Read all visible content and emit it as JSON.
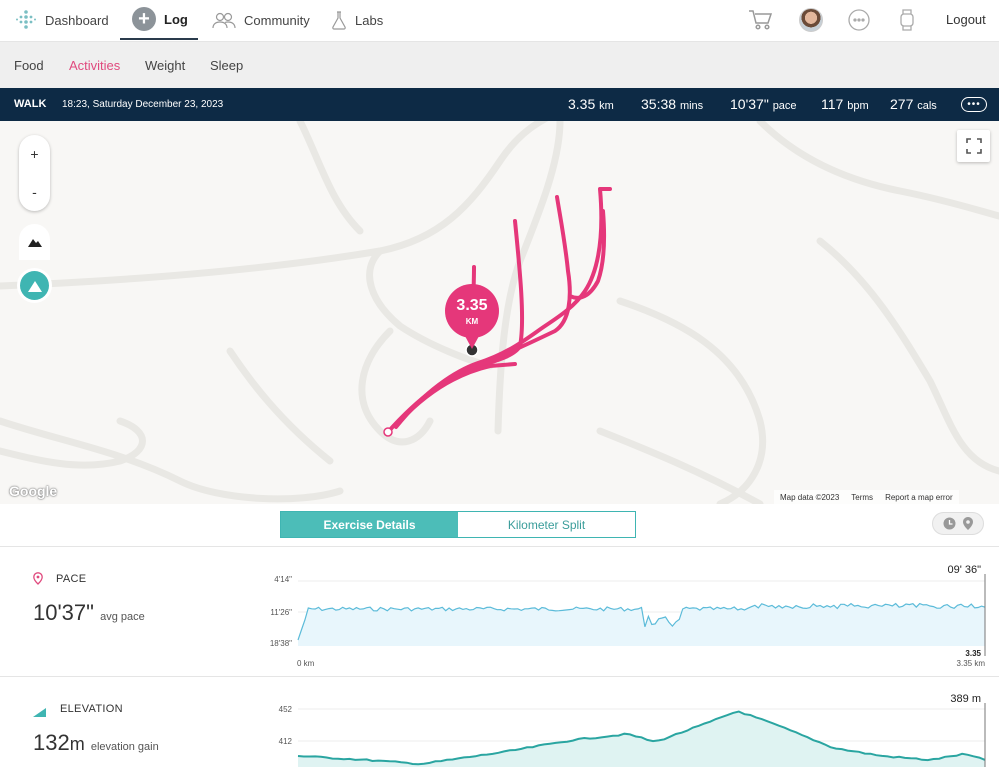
{
  "nav": {
    "dashboard": "Dashboard",
    "log": "Log",
    "community": "Community",
    "labs": "Labs",
    "logout": "Logout"
  },
  "subnav": {
    "food": "Food",
    "activities": "Activities",
    "weight": "Weight",
    "sleep": "Sleep",
    "active": "Activities"
  },
  "activity": {
    "type": "WALK",
    "datetime": "18:23, Saturday December 23, 2023",
    "distance": "3.35",
    "distance_unit": "km",
    "duration": "35:38",
    "duration_unit": "mins",
    "pace": "10'37\"",
    "pace_unit": "pace",
    "heart_rate": "117",
    "heart_rate_unit": "bpm",
    "calories": "277",
    "calories_unit": "cals"
  },
  "map": {
    "zoom_in": "+",
    "zoom_out": "-",
    "badge_value": "3.35",
    "badge_unit": "KM",
    "google": "Google",
    "attribution": "Map data ©2023",
    "terms": "Terms",
    "report": "Report a map error",
    "route_color": "#e5377a"
  },
  "tabs": {
    "exercise_details": "Exercise Details",
    "kilometer_split": "Kilometer Split"
  },
  "pace_section": {
    "title": "PACE",
    "value": "10'37\"",
    "value_label": "avg pace",
    "y_ticks": [
      "4'14\"",
      "11'26\"",
      "18'38\""
    ],
    "x_start": "0 km",
    "x_end": "3.35 km",
    "end_marker": "3.35",
    "cursor_value": "09' 36\""
  },
  "elevation_section": {
    "title": "ELEVATION",
    "value": "132",
    "value_unit": "m",
    "value_label": "elevation gain",
    "y_ticks": [
      "452",
      "412"
    ],
    "cursor_value": "389 m"
  },
  "colors": {
    "accent": "#e04a7e",
    "teal": "#3fb5b2",
    "navbar": "#0d2a45",
    "pace_line": "#5bbbd9"
  },
  "icons": {
    "dashboard": "dots-grid-icon",
    "log": "plus-circle-icon",
    "community": "people-icon",
    "labs": "flask-icon",
    "cart": "cart-icon",
    "messages": "chat-icon",
    "device": "watch-icon",
    "more": "more-icon",
    "pace": "location-pin-icon",
    "elevation": "mountain-icon",
    "clock": "clock-icon",
    "pin": "pin-icon"
  }
}
